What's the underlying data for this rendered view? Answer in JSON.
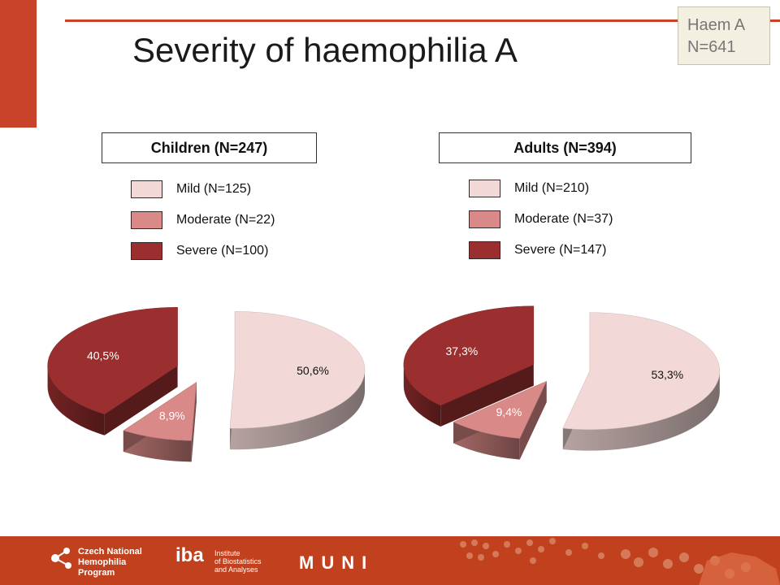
{
  "slide": {
    "title": "Severity of haemophilia A"
  },
  "corner_box": {
    "line1": "Haem A",
    "line2": "N=641"
  },
  "chart_data": [
    {
      "type": "pie",
      "title": "Children (N=247)",
      "legend": [
        {
          "label": "Mild (N=125)",
          "color": "#f2d9d7"
        },
        {
          "label": "Moderate (N=22)",
          "color": "#d98a88"
        },
        {
          "label": "Severe (N=100)",
          "color": "#9b2f2f"
        }
      ],
      "slices": [
        {
          "name": "Mild",
          "n": 125,
          "percent": 50.6,
          "label": "50,6%"
        },
        {
          "name": "Moderate",
          "n": 22,
          "percent": 8.9,
          "label": "8,9%"
        },
        {
          "name": "Severe",
          "n": 100,
          "percent": 40.5,
          "label": "40,5%"
        }
      ]
    },
    {
      "type": "pie",
      "title": "Adults (N=394)",
      "legend": [
        {
          "label": "Mild (N=210)",
          "color": "#f2d9d7"
        },
        {
          "label": "Moderate (N=37)",
          "color": "#d98a88"
        },
        {
          "label": "Severe (N=147)",
          "color": "#9b2f2f"
        }
      ],
      "slices": [
        {
          "name": "Mild",
          "n": 210,
          "percent": 53.3,
          "label": "53,3%"
        },
        {
          "name": "Moderate",
          "n": 37,
          "percent": 9.4,
          "label": "9,4%"
        },
        {
          "name": "Severe",
          "n": 147,
          "percent": 37.3,
          "label": "37,3%"
        }
      ]
    }
  ],
  "footer": {
    "logo1_line1": "Czech National",
    "logo1_line2": "Hemophilia",
    "logo1_line3": "Program",
    "logo2": "iba",
    "logo2_line1": "Institute",
    "logo2_line2": "of Biostatistics",
    "logo2_line3": "and Analyses",
    "logo3": "MUNI"
  }
}
